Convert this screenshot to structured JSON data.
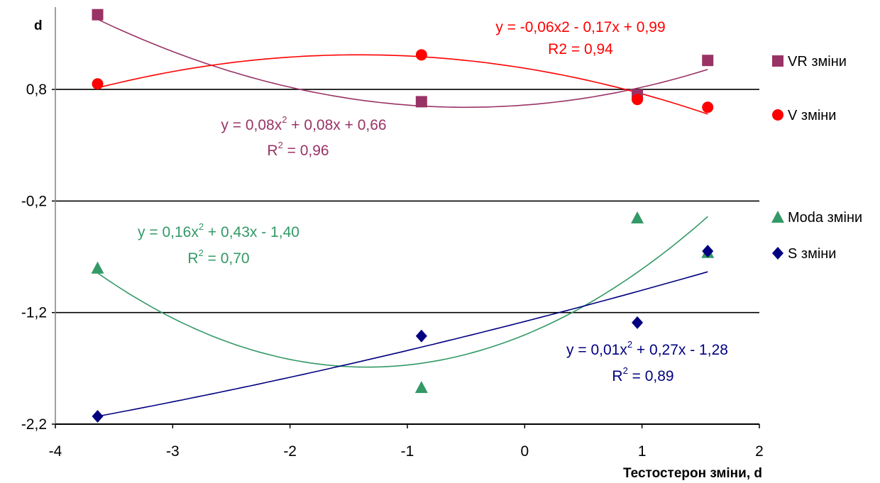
{
  "chart_data": {
    "type": "scatter",
    "ylabel": "d",
    "xlabel": "Тестостерон зміни, d",
    "xlim": [
      -4,
      2
    ],
    "ylim": [
      -2.2,
      1.4
    ],
    "x_ticks": [
      "-4",
      "-3",
      "-2",
      "-1",
      "0",
      "1",
      "2"
    ],
    "y_ticks": [
      "0,8",
      "-0,2",
      "-1,2",
      "-2,2"
    ],
    "grid": "horizontal lines at 0,8, -0,2, -1,2",
    "legend_position": "right",
    "series": [
      {
        "name": "VR зміни",
        "color": "#993366",
        "marker": "square",
        "points": [
          [
            -3.64,
            1.47
          ],
          [
            -0.88,
            0.69
          ],
          [
            0.96,
            0.75
          ],
          [
            1.56,
            1.06
          ]
        ],
        "trend": {
          "a": 0.08,
          "b": 0.08,
          "c": 0.66
        },
        "equation": {
          "pre": "y = 0,08x",
          "sup": "2",
          "post": " + 0,08x + 0,66"
        },
        "r2": {
          "pre": "R",
          "sup": "2",
          "post": " = 0,96"
        }
      },
      {
        "name": "V зміни",
        "color": "#ff0000",
        "marker": "circle",
        "points": [
          [
            -3.64,
            0.85
          ],
          [
            -0.88,
            1.11
          ],
          [
            0.96,
            0.71
          ],
          [
            1.56,
            0.64
          ]
        ],
        "trend": {
          "a": -0.06,
          "b": -0.17,
          "c": 0.99
        },
        "equation": {
          "pre": "y = -0,06x2 - 0,17x + 0,99",
          "sup": "",
          "post": ""
        },
        "r2": {
          "pre": "R2 = 0,94",
          "sup": "",
          "post": ""
        }
      },
      {
        "name": "Moda зміни",
        "color": "#339966",
        "marker": "triangle",
        "points": [
          [
            -3.64,
            -0.8
          ],
          [
            -0.88,
            -1.87
          ],
          [
            0.96,
            -0.35
          ],
          [
            1.56,
            -0.66
          ]
        ],
        "trend": {
          "a": 0.16,
          "b": 0.43,
          "c": -1.4
        },
        "equation": {
          "pre": "y = 0,16x",
          "sup": "2",
          "post": " + 0,43x - 1,40"
        },
        "r2": {
          "pre": "R",
          "sup": "2",
          "post": " = 0,70"
        }
      },
      {
        "name": "S зміни",
        "color": "#000080",
        "marker": "diamond",
        "points": [
          [
            -3.64,
            -2.13
          ],
          [
            -0.88,
            -1.41
          ],
          [
            0.96,
            -1.29
          ],
          [
            1.56,
            -0.65
          ]
        ],
        "trend": {
          "a": 0.01,
          "b": 0.27,
          "c": -1.28
        },
        "equation": {
          "pre": "y = 0,01x",
          "sup": "2",
          "post": " + 0,27x - 1,28"
        },
        "r2": {
          "pre": "R",
          "sup": "2",
          "post": " = 0,89"
        }
      }
    ]
  }
}
